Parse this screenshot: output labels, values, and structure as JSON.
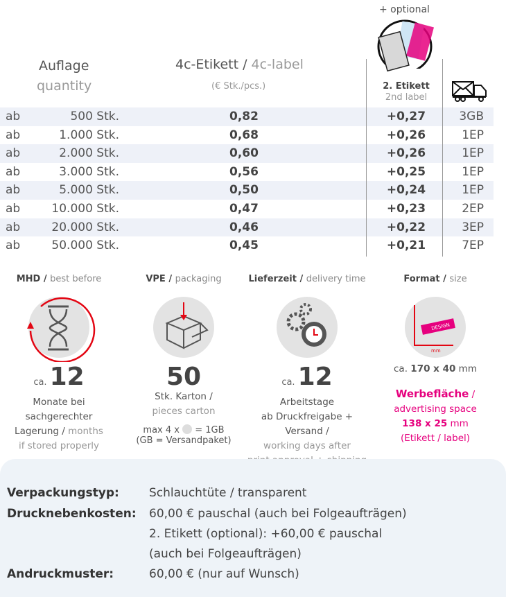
{
  "header": {
    "optional": "+ optional",
    "qty_de": "Auflage",
    "qty_en": "quantity",
    "label_de": "4c-Etikett",
    "label_en": "4c-label",
    "unit": "(€ Stk./pcs.)",
    "second_de": "2. Etikett",
    "second_en": "2nd label"
  },
  "rows": [
    {
      "ab": "ab",
      "qty": "500 Stk.",
      "price": "0,82",
      "extra": "+0,27",
      "ship": "3GB"
    },
    {
      "ab": "ab",
      "qty": "1.000 Stk.",
      "price": "0,68",
      "extra": "+0,26",
      "ship": "1EP"
    },
    {
      "ab": "ab",
      "qty": "2.000 Stk.",
      "price": "0,60",
      "extra": "+0,26",
      "ship": "1EP"
    },
    {
      "ab": "ab",
      "qty": "3.000 Stk.",
      "price": "0,56",
      "extra": "+0,25",
      "ship": "1EP"
    },
    {
      "ab": "ab",
      "qty": "5.000 Stk.",
      "price": "0,50",
      "extra": "+0,24",
      "ship": "1EP"
    },
    {
      "ab": "ab",
      "qty": "10.000 Stk.",
      "price": "0,47",
      "extra": "+0,23",
      "ship": "2EP"
    },
    {
      "ab": "ab",
      "qty": "20.000 Stk.",
      "price": "0,46",
      "extra": "+0,22",
      "ship": "3EP"
    },
    {
      "ab": "ab",
      "qty": "50.000 Stk.",
      "price": "0,45",
      "extra": "+0,21",
      "ship": "7EP"
    }
  ],
  "info": {
    "mhd": {
      "t_de": "MHD",
      "t_en": "best before",
      "ca": "ca.",
      "num": "12",
      "l1": "Monate bei",
      "l2": "sachgerechter",
      "l3": "Lagerung",
      "l3b": "months",
      "l4": "if stored properly"
    },
    "vpe": {
      "t_de": "VPE",
      "t_en": "packaging",
      "num": "50",
      "l1": "Stk. Karton /",
      "l2": "pieces carton",
      "l3a": "max 4 x",
      "l3b": "= 1GB",
      "l4": "(GB = Versandpaket)"
    },
    "lief": {
      "t_de": "Lieferzeit",
      "t_en": "delivery time",
      "ca": "ca.",
      "num": "12",
      "l1": "Arbeitstage",
      "l2": "ab Druckfreigabe + Versand /",
      "l3": "working days after",
      "l4": "print approval + shipping"
    },
    "format": {
      "t_de": "Format",
      "t_en": "size",
      "ca": "ca.",
      "size": "170 x 40",
      "mm": "mm",
      "icon_text": "DESIGN",
      "icon_mm": "mm",
      "w_de": "Werbefläche",
      "w_en": "advertising space",
      "wsize": "138 x 25",
      "wmm": "mm",
      "wnote": "(Etikett / label)"
    }
  },
  "details": [
    {
      "label": "Verpackungstyp:",
      "value": "Schlauchtüte / transparent"
    },
    {
      "label": "Drucknebenkosten:",
      "value": "60,00 € pauschal (auch bei Folgeaufträgen)"
    },
    {
      "label": "",
      "value": "2. Etikett (optional): +60,00 € pauschal"
    },
    {
      "label": "",
      "value": "(auch bei Folgeaufträgen)"
    },
    {
      "label": "Andruckmuster:",
      "value": "60,00 € (nur auf Wunsch)"
    }
  ],
  "colors": {
    "accent": "#e6007e",
    "row_alt": "#eef1f8",
    "red": "#e30613"
  }
}
